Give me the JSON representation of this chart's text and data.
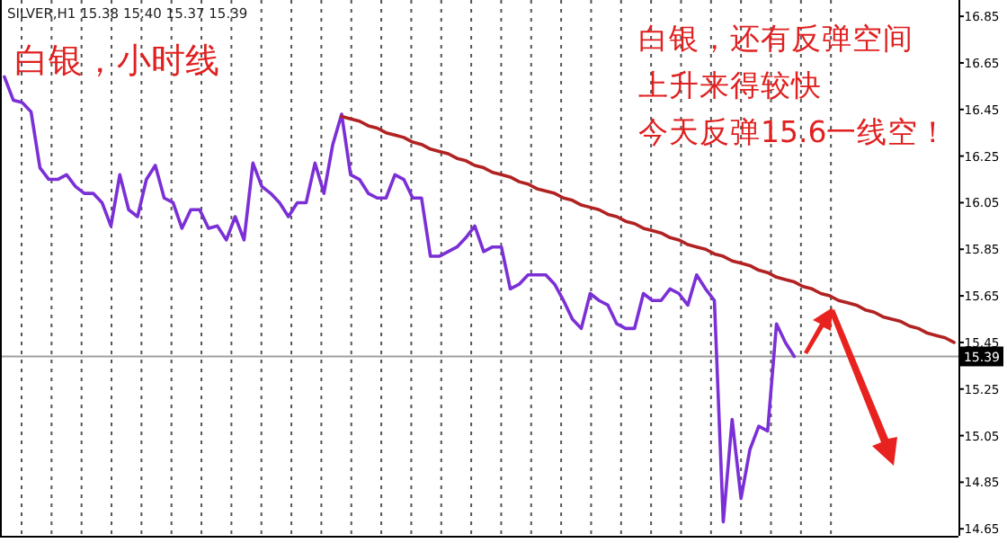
{
  "chart_data": {
    "type": "line",
    "annotations": [
      "SILVER,H1 15.38 15.40 15.37 15.39",
      "白银，小时线",
      "白银，还有反弹空间",
      "上升来得较快",
      "今天反弹15.6一线空！"
    ],
    "categories": [
      null,
      null,
      null,
      null,
      null,
      null,
      null,
      null,
      null,
      null,
      null,
      null,
      null,
      null,
      null,
      null,
      null,
      null,
      null,
      null,
      null,
      null,
      null,
      null,
      null,
      null,
      null,
      null,
      null,
      null,
      null,
      null,
      null,
      null,
      null,
      null,
      null,
      null,
      null,
      null,
      null,
      null,
      null,
      null,
      null,
      null,
      null,
      null,
      null,
      null,
      null,
      null,
      null,
      null,
      null,
      null,
      null,
      null,
      null,
      null,
      null,
      null,
      null,
      null,
      null,
      null,
      null,
      null,
      null,
      null,
      null,
      null,
      null,
      null,
      null,
      null,
      null,
      null,
      null,
      null,
      null,
      null,
      null,
      null,
      null,
      null,
      null,
      null,
      null,
      null,
      null,
      null,
      null,
      null,
      null,
      null,
      null,
      null,
      null,
      null,
      null,
      null,
      null,
      null,
      null,
      null,
      null,
      null
    ],
    "ylim": [
      14.62,
      16.92
    ],
    "yticks": [
      14.65,
      14.85,
      15.05,
      15.25,
      15.45,
      15.65,
      15.85,
      16.05,
      16.25,
      16.45,
      16.65,
      16.85
    ],
    "tick_labels": "y",
    "grid": "x",
    "line_style": "solid",
    "marker": "none",
    "ref_lines": [
      {
        "axis": "y",
        "value": 15.39,
        "label": "15.39",
        "color": "#a0a0a0"
      }
    ],
    "series": [
      {
        "color": "#7b2fd6",
        "values": [
          16.59,
          16.49,
          16.48,
          16.44,
          16.2,
          16.15,
          16.15,
          16.17,
          16.12,
          16.09,
          16.09,
          16.05,
          15.95,
          16.17,
          16.02,
          15.99,
          16.15,
          16.21,
          16.07,
          16.05,
          15.94,
          16.02,
          16.02,
          15.94,
          15.95,
          15.89,
          15.99,
          15.89,
          16.22,
          16.12,
          16.09,
          16.05,
          15.99,
          16.05,
          16.05,
          16.22,
          16.09,
          16.3,
          16.43,
          16.17,
          16.15,
          16.09,
          16.07,
          16.07,
          16.17,
          16.15,
          16.07,
          16.07,
          15.82,
          15.82,
          15.84,
          15.86,
          15.9,
          15.95,
          15.84,
          15.86,
          15.86,
          15.68,
          15.7,
          15.74,
          15.74,
          15.74,
          15.7,
          15.63,
          15.55,
          15.51,
          15.66,
          15.63,
          15.61,
          15.53,
          15.51,
          15.51,
          15.66,
          15.63,
          15.63,
          15.68,
          15.66,
          15.61,
          15.74,
          15.68,
          15.63,
          14.68,
          15.12,
          14.78,
          14.99,
          15.09,
          15.07,
          15.53,
          15.45,
          15.39,
          null,
          null,
          null,
          null,
          null,
          null,
          null,
          null,
          null,
          null,
          null,
          null,
          null,
          null,
          null,
          null,
          null,
          null
        ]
      },
      {
        "type": "line",
        "color": "#b22222",
        "values": [
          null,
          null,
          null,
          null,
          null,
          null,
          null,
          null,
          null,
          null,
          null,
          null,
          null,
          null,
          null,
          null,
          null,
          null,
          null,
          null,
          null,
          null,
          null,
          null,
          null,
          null,
          null,
          null,
          null,
          null,
          null,
          null,
          null,
          null,
          null,
          null,
          null,
          null,
          16.42,
          16.41,
          16.4,
          16.38,
          16.37,
          16.35,
          16.34,
          16.33,
          16.31,
          16.3,
          16.28,
          16.27,
          16.26,
          16.24,
          16.23,
          16.21,
          16.2,
          16.18,
          16.17,
          16.16,
          16.14,
          16.13,
          16.11,
          16.1,
          16.09,
          16.07,
          16.06,
          16.04,
          16.03,
          16.02,
          16.0,
          15.99,
          15.97,
          15.96,
          15.94,
          15.93,
          15.92,
          15.9,
          15.89,
          15.87,
          15.86,
          15.85,
          15.83,
          15.82,
          15.8,
          15.79,
          15.78,
          15.76,
          15.75,
          15.73,
          15.72,
          15.71,
          15.69,
          15.68,
          15.66,
          15.65,
          15.63,
          15.62,
          15.61,
          15.59,
          15.58,
          15.56,
          15.55,
          15.54,
          15.52,
          15.51,
          15.49,
          15.48,
          15.47,
          15.45
        ]
      }
    ]
  }
}
